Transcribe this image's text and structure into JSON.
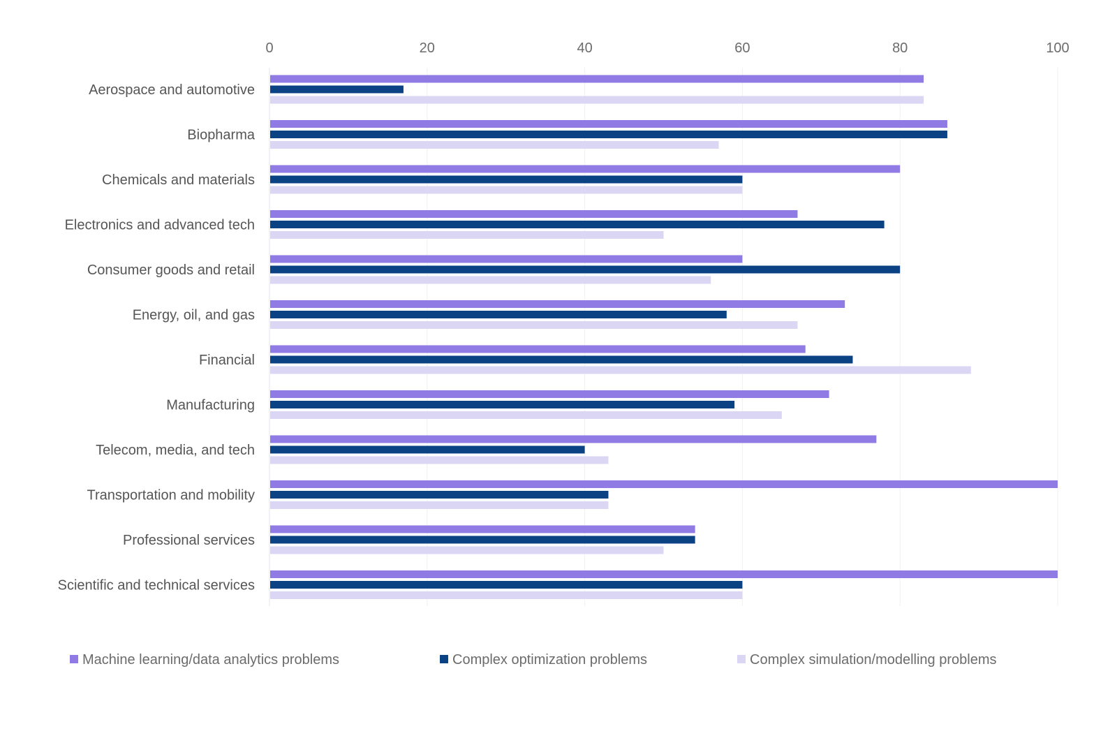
{
  "chart_data": {
    "type": "bar",
    "orientation": "horizontal",
    "categories": [
      "Aerospace and automotive",
      "Biopharma",
      "Chemicals and materials",
      "Electronics and advanced tech",
      "Consumer goods and retail",
      "Energy, oil, and gas",
      "Financial",
      "Manufacturing",
      "Telecom, media, and tech",
      "Transportation and mobility",
      "Professional services",
      "Scientific and technical services"
    ],
    "series": [
      {
        "name": "Machine learning/data analytics problems",
        "color": "#8f7be3",
        "values": [
          83,
          86,
          80,
          67,
          60,
          73,
          68,
          71,
          77,
          100,
          54,
          100
        ]
      },
      {
        "name": "Complex optimization problems",
        "color": "#0b4284",
        "values": [
          17,
          86,
          60,
          78,
          80,
          58,
          74,
          59,
          40,
          43,
          54,
          60
        ]
      },
      {
        "name": "Complex simulation/modelling problems",
        "color": "#dcd6f5",
        "values": [
          83,
          57,
          60,
          50,
          56,
          67,
          89,
          65,
          43,
          43,
          50,
          60
        ]
      }
    ],
    "xlim": [
      0,
      100
    ],
    "xticks": [
      "0",
      "20",
      "40",
      "60",
      "80",
      "100"
    ],
    "xaxis_position": "top",
    "grid": true,
    "legend": "bottom"
  }
}
